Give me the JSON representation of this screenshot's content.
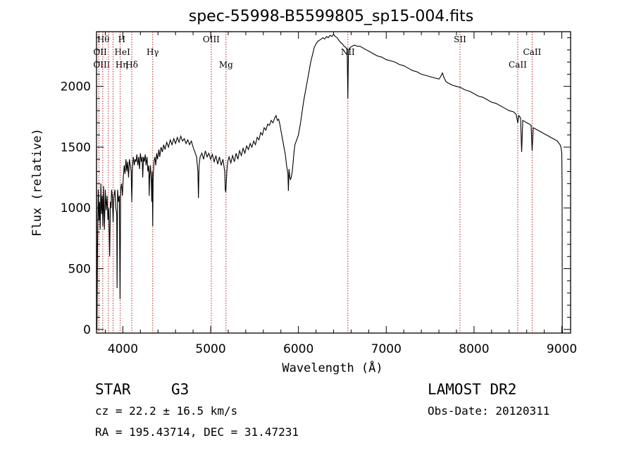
{
  "chart_data": {
    "type": "line",
    "title": "spec-55998-B5599805_sp15-004.fits",
    "xlabel": "Wavelength (Å)",
    "ylabel": "Flux (relative)",
    "xlim": [
      3700,
      9100
    ],
    "ylim": [
      -30,
      2450
    ],
    "xticks": [
      4000,
      5000,
      6000,
      7000,
      8000,
      9000
    ],
    "yticks": [
      0,
      500,
      1000,
      1500,
      2000
    ],
    "grid": false,
    "series": [
      {
        "points": [
          [
            3700,
            1480
          ],
          [
            3705,
            0
          ],
          [
            3712,
            700
          ],
          [
            3720,
            1150
          ],
          [
            3728,
            900
          ],
          [
            3735,
            1050
          ],
          [
            3742,
            820
          ],
          [
            3750,
            1200
          ],
          [
            3758,
            950
          ],
          [
            3765,
            1100
          ],
          [
            3772,
            850
          ],
          [
            3780,
            1180
          ],
          [
            3790,
            820
          ],
          [
            3800,
            1150
          ],
          [
            3810,
            980
          ],
          [
            3820,
            1100
          ],
          [
            3830,
            900
          ],
          [
            3840,
            1000
          ],
          [
            3850,
            600
          ],
          [
            3858,
            1050
          ],
          [
            3865,
            1000
          ],
          [
            3872,
            1150
          ],
          [
            3880,
            1100
          ],
          [
            3889,
            880
          ],
          [
            3895,
            1050
          ],
          [
            3900,
            1100
          ],
          [
            3910,
            1150
          ],
          [
            3920,
            1000
          ],
          [
            3930,
            950
          ],
          [
            3934,
            340
          ],
          [
            3940,
            1150
          ],
          [
            3950,
            1050
          ],
          [
            3960,
            1100
          ],
          [
            3968,
            250
          ],
          [
            3975,
            1150
          ],
          [
            3985,
            1200
          ],
          [
            3995,
            1100
          ],
          [
            4005,
            1250
          ],
          [
            4015,
            1350
          ],
          [
            4025,
            1280
          ],
          [
            4035,
            1400
          ],
          [
            4045,
            1300
          ],
          [
            4055,
            1380
          ],
          [
            4065,
            1250
          ],
          [
            4075,
            1400
          ],
          [
            4085,
            1350
          ],
          [
            4095,
            1300
          ],
          [
            4102,
            1050
          ],
          [
            4110,
            1350
          ],
          [
            4120,
            1420
          ],
          [
            4130,
            1350
          ],
          [
            4140,
            1400
          ],
          [
            4150,
            1380
          ],
          [
            4160,
            1440
          ],
          [
            4170,
            1350
          ],
          [
            4180,
            1420
          ],
          [
            4190,
            1320
          ],
          [
            4200,
            1450
          ],
          [
            4210,
            1380
          ],
          [
            4220,
            1420
          ],
          [
            4226,
            1250
          ],
          [
            4235,
            1420
          ],
          [
            4245,
            1380
          ],
          [
            4255,
            1440
          ],
          [
            4265,
            1350
          ],
          [
            4275,
            1420
          ],
          [
            4285,
            1300
          ],
          [
            4295,
            1350
          ],
          [
            4300,
            1100
          ],
          [
            4305,
            1250
          ],
          [
            4315,
            1350
          ],
          [
            4325,
            1200
          ],
          [
            4330,
            1050
          ],
          [
            4335,
            1300
          ],
          [
            4340,
            850
          ],
          [
            4345,
            1250
          ],
          [
            4355,
            1380
          ],
          [
            4365,
            1420
          ],
          [
            4375,
            1350
          ],
          [
            4385,
            1450
          ],
          [
            4395,
            1400
          ],
          [
            4410,
            1480
          ],
          [
            4420,
            1420
          ],
          [
            4435,
            1500
          ],
          [
            4450,
            1460
          ],
          [
            4465,
            1520
          ],
          [
            4480,
            1480
          ],
          [
            4500,
            1540
          ],
          [
            4520,
            1500
          ],
          [
            4540,
            1560
          ],
          [
            4560,
            1520
          ],
          [
            4580,
            1570
          ],
          [
            4600,
            1530
          ],
          [
            4620,
            1580
          ],
          [
            4640,
            1540
          ],
          [
            4660,
            1590
          ],
          [
            4680,
            1550
          ],
          [
            4700,
            1570
          ],
          [
            4720,
            1530
          ],
          [
            4740,
            1560
          ],
          [
            4760,
            1520
          ],
          [
            4780,
            1550
          ],
          [
            4800,
            1500
          ],
          [
            4820,
            1460
          ],
          [
            4840,
            1420
          ],
          [
            4855,
            1300
          ],
          [
            4861,
            1080
          ],
          [
            4868,
            1350
          ],
          [
            4880,
            1420
          ],
          [
            4900,
            1450
          ],
          [
            4920,
            1400
          ],
          [
            4940,
            1470
          ],
          [
            4960,
            1420
          ],
          [
            4980,
            1450
          ],
          [
            5000,
            1400
          ],
          [
            5020,
            1440
          ],
          [
            5040,
            1380
          ],
          [
            5060,
            1430
          ],
          [
            5080,
            1360
          ],
          [
            5100,
            1420
          ],
          [
            5120,
            1350
          ],
          [
            5140,
            1400
          ],
          [
            5160,
            1300
          ],
          [
            5167,
            1150
          ],
          [
            5172,
            1130
          ],
          [
            5178,
            1200
          ],
          [
            5184,
            1300
          ],
          [
            5195,
            1380
          ],
          [
            5210,
            1420
          ],
          [
            5230,
            1370
          ],
          [
            5250,
            1430
          ],
          [
            5270,
            1380
          ],
          [
            5290,
            1450
          ],
          [
            5310,
            1400
          ],
          [
            5330,
            1470
          ],
          [
            5350,
            1430
          ],
          [
            5370,
            1490
          ],
          [
            5390,
            1450
          ],
          [
            5410,
            1510
          ],
          [
            5430,
            1480
          ],
          [
            5450,
            1530
          ],
          [
            5470,
            1500
          ],
          [
            5490,
            1550
          ],
          [
            5510,
            1520
          ],
          [
            5530,
            1580
          ],
          [
            5550,
            1560
          ],
          [
            5570,
            1620
          ],
          [
            5590,
            1600
          ],
          [
            5610,
            1660
          ],
          [
            5630,
            1640
          ],
          [
            5650,
            1690
          ],
          [
            5670,
            1680
          ],
          [
            5690,
            1720
          ],
          [
            5710,
            1700
          ],
          [
            5730,
            1740
          ],
          [
            5745,
            1760
          ],
          [
            5760,
            1720
          ],
          [
            5775,
            1730
          ],
          [
            5790,
            1680
          ],
          [
            5805,
            1620
          ],
          [
            5820,
            1560
          ],
          [
            5835,
            1500
          ],
          [
            5850,
            1440
          ],
          [
            5865,
            1350
          ],
          [
            5880,
            1280
          ],
          [
            5886,
            1140
          ],
          [
            5893,
            1320
          ],
          [
            5900,
            1260
          ],
          [
            5910,
            1230
          ],
          [
            5920,
            1260
          ],
          [
            5930,
            1300
          ],
          [
            5940,
            1380
          ],
          [
            5950,
            1460
          ],
          [
            5960,
            1520
          ],
          [
            5980,
            1560
          ],
          [
            6000,
            1600
          ],
          [
            6020,
            1680
          ],
          [
            6040,
            1780
          ],
          [
            6060,
            1880
          ],
          [
            6080,
            1960
          ],
          [
            6100,
            2040
          ],
          [
            6120,
            2120
          ],
          [
            6140,
            2200
          ],
          [
            6160,
            2260
          ],
          [
            6180,
            2320
          ],
          [
            6200,
            2350
          ],
          [
            6220,
            2370
          ],
          [
            6240,
            2380
          ],
          [
            6260,
            2390
          ],
          [
            6280,
            2400
          ],
          [
            6300,
            2390
          ],
          [
            6320,
            2410
          ],
          [
            6340,
            2400
          ],
          [
            6360,
            2420
          ],
          [
            6380,
            2410
          ],
          [
            6400,
            2430
          ],
          [
            6420,
            2410
          ],
          [
            6440,
            2400
          ],
          [
            6460,
            2380
          ],
          [
            6480,
            2360
          ],
          [
            6500,
            2350
          ],
          [
            6520,
            2330
          ],
          [
            6540,
            2320
          ],
          [
            6555,
            2310
          ],
          [
            6563,
            1900
          ],
          [
            6570,
            2300
          ],
          [
            6590,
            2320
          ],
          [
            6610,
            2330
          ],
          [
            6640,
            2340
          ],
          [
            6670,
            2330
          ],
          [
            6700,
            2330
          ],
          [
            6750,
            2310
          ],
          [
            6800,
            2290
          ],
          [
            6850,
            2270
          ],
          [
            6900,
            2250
          ],
          [
            6950,
            2240
          ],
          [
            7000,
            2220
          ],
          [
            7050,
            2210
          ],
          [
            7100,
            2200
          ],
          [
            7150,
            2180
          ],
          [
            7200,
            2170
          ],
          [
            7250,
            2150
          ],
          [
            7300,
            2130
          ],
          [
            7350,
            2120
          ],
          [
            7400,
            2100
          ],
          [
            7450,
            2090
          ],
          [
            7500,
            2080
          ],
          [
            7550,
            2070
          ],
          [
            7600,
            2060
          ],
          [
            7620,
            2080
          ],
          [
            7640,
            2110
          ],
          [
            7660,
            2070
          ],
          [
            7680,
            2040
          ],
          [
            7700,
            2030
          ],
          [
            7750,
            2010
          ],
          [
            7800,
            2000
          ],
          [
            7850,
            1990
          ],
          [
            7900,
            1970
          ],
          [
            7950,
            1960
          ],
          [
            8000,
            1940
          ],
          [
            8050,
            1920
          ],
          [
            8100,
            1910
          ],
          [
            8150,
            1890
          ],
          [
            8200,
            1870
          ],
          [
            8250,
            1860
          ],
          [
            8300,
            1840
          ],
          [
            8350,
            1820
          ],
          [
            8400,
            1800
          ],
          [
            8450,
            1790
          ],
          [
            8480,
            1770
          ],
          [
            8498,
            1700
          ],
          [
            8510,
            1760
          ],
          [
            8530,
            1740
          ],
          [
            8542,
            1460
          ],
          [
            8555,
            1720
          ],
          [
            8580,
            1710
          ],
          [
            8600,
            1700
          ],
          [
            8630,
            1690
          ],
          [
            8650,
            1680
          ],
          [
            8662,
            1470
          ],
          [
            8675,
            1660
          ],
          [
            8700,
            1650
          ],
          [
            8750,
            1630
          ],
          [
            8800,
            1610
          ],
          [
            8850,
            1590
          ],
          [
            8900,
            1570
          ],
          [
            8950,
            1550
          ],
          [
            8980,
            1520
          ],
          [
            8990,
            1500
          ],
          [
            9000,
            1450
          ],
          [
            9003,
            1200
          ],
          [
            9005,
            0
          ],
          [
            9008,
            -30
          ]
        ]
      }
    ],
    "line_marks": [
      {
        "wl": 3727,
        "labels": [
          "OII",
          "OIII"
        ]
      },
      {
        "wl": 3771,
        "labels": [
          "Hθ"
        ]
      },
      {
        "wl": 3835,
        "labels": [
          "Hη"
        ]
      },
      {
        "wl": 3889,
        "labels": [
          "HeI"
        ]
      },
      {
        "wl": 3970,
        "labels": [
          "H"
        ]
      },
      {
        "wl": 4102,
        "labels": [
          "Hδ"
        ]
      },
      {
        "wl": 4340,
        "labels": [
          "Hγ"
        ]
      },
      {
        "wl": 5007,
        "labels": [
          "OIII"
        ]
      },
      {
        "wl": 5175,
        "labels": [
          "Mg"
        ]
      },
      {
        "wl": 6563,
        "labels": [
          "NII"
        ]
      },
      {
        "wl": 7840,
        "labels": [
          "SII"
        ]
      },
      {
        "wl": 8498,
        "labels": [
          "CaII"
        ]
      },
      {
        "wl": 8662,
        "labels": [
          "CaII"
        ]
      }
    ],
    "line_color": "#b22222"
  },
  "info": {
    "class_label": "STAR",
    "subclass": "G3",
    "survey": "LAMOST DR2",
    "cz": "cz = 22.2 ± 16.5 km/s",
    "obs_date": "Obs-Date: 20120311",
    "coords": "RA = 195.43714, DEC =  31.47231"
  }
}
